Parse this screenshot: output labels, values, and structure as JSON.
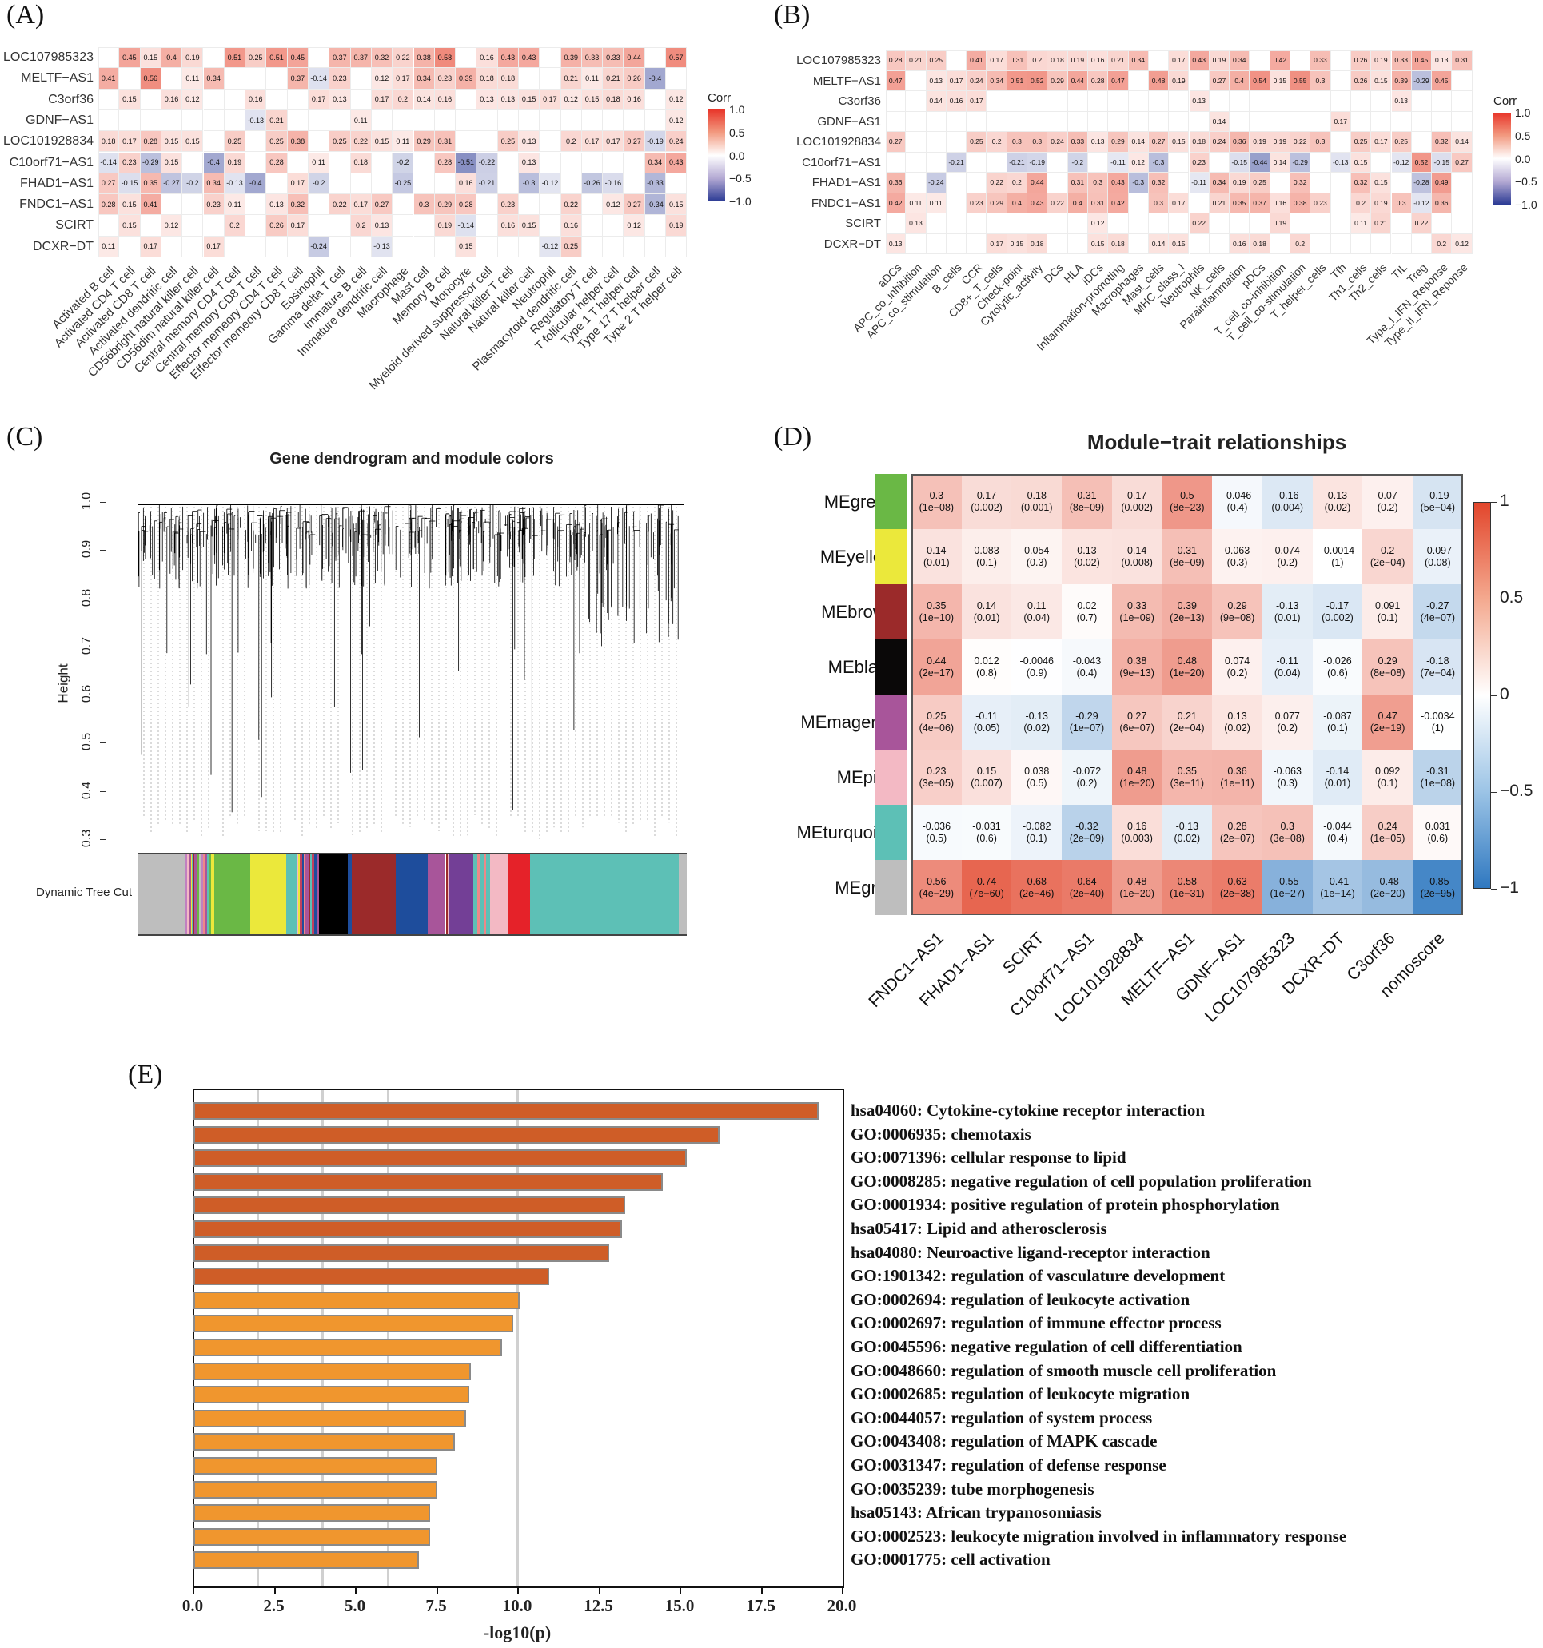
{
  "panels": {
    "a": "(A)",
    "b": "(B)",
    "c": "(C)",
    "d": "(D)",
    "e": "(E)"
  },
  "colors": {
    "positive": "#e8503a",
    "negative_a": "#2b3a94",
    "d_positive": "#e2462c",
    "d_negative": "#2f78c0",
    "e_top": "#cf5d27",
    "e_rest": "#f0962e"
  },
  "chart_data": [
    {
      "panel": "A",
      "type": "heatmap",
      "legend": {
        "title": "Corr",
        "ticks": [
          "1.0",
          "0.5",
          "0.0",
          "−0.5",
          "−1.0"
        ],
        "range": [
          -1,
          1
        ]
      },
      "rows": [
        "LOC107985323",
        "MELTF−AS1",
        "C3orf36",
        "GDNF−AS1",
        "LOC101928834",
        "C10orf71−AS1",
        "FHAD1−AS1",
        "FNDC1−AS1",
        "SCIRT",
        "DCXR−DT"
      ],
      "columns": [
        "Activated B cell",
        "Activated CD4 T cell",
        "Activated CD8 T cell",
        "Activated dendritic cell",
        "CD56bright natural killer cell",
        "CD56dim natural killer cell",
        "Central memory CD4 T cell",
        "Central memory CD8 T cell",
        "Effector memeory CD4 T cell",
        "Effector memeory CD8 T cell",
        "Eosinophil",
        "Gamma delta T cell",
        "Immature B cell",
        "Immature dendritic cell",
        "Macrophage",
        "Mast cell",
        "Memory B cell",
        "Monocyte",
        "Myeloid derived suppressor cell",
        "Natural killer T cell",
        "Natural killer cell",
        "Neutrophil",
        "Plasmacytoid dendritic cell",
        "Regulatory T cell",
        "T follicular helper cell",
        "Type 1 T helper cell",
        "Type 17 T helper cell",
        "Type 2 T helper cell"
      ],
      "values": [
        [
          null,
          0.45,
          0.15,
          0.4,
          0.19,
          null,
          0.51,
          0.25,
          0.51,
          0.45,
          null,
          0.37,
          0.37,
          0.32,
          0.22,
          0.38,
          0.58,
          null,
          0.16,
          0.43,
          0.43,
          null,
          0.39,
          0.33,
          0.33,
          0.44,
          null,
          0.57
        ],
        [
          0.41,
          null,
          0.56,
          null,
          0.11,
          0.34,
          null,
          null,
          null,
          0.37,
          -0.14,
          0.23,
          null,
          0.12,
          0.17,
          0.34,
          0.23,
          0.39,
          0.18,
          0.18,
          null,
          null,
          0.21,
          0.11,
          0.21,
          0.26,
          -0.4,
          null
        ],
        [
          null,
          0.15,
          null,
          0.16,
          0.12,
          null,
          null,
          0.16,
          null,
          null,
          0.17,
          0.13,
          null,
          0.17,
          0.2,
          0.14,
          0.16,
          null,
          0.13,
          0.13,
          0.15,
          0.17,
          0.12,
          0.15,
          0.18,
          0.16,
          null,
          0.12
        ],
        [
          null,
          null,
          null,
          null,
          null,
          null,
          null,
          -0.13,
          0.21,
          null,
          null,
          null,
          0.11,
          null,
          null,
          null,
          null,
          null,
          null,
          null,
          null,
          null,
          null,
          null,
          null,
          null,
          null,
          0.12
        ],
        [
          0.18,
          0.17,
          0.28,
          0.15,
          0.15,
          null,
          0.25,
          null,
          0.25,
          0.38,
          null,
          0.25,
          0.22,
          0.15,
          0.11,
          0.29,
          0.31,
          null,
          null,
          0.25,
          0.13,
          null,
          0.2,
          0.17,
          0.17,
          0.27,
          -0.19,
          0.24
        ],
        [
          -0.14,
          0.23,
          -0.29,
          0.15,
          null,
          -0.4,
          0.19,
          null,
          0.28,
          null,
          0.11,
          null,
          0.18,
          null,
          -0.2,
          null,
          0.28,
          -0.51,
          -0.22,
          null,
          0.13,
          null,
          null,
          null,
          null,
          null,
          0.34,
          0.43
        ],
        [
          0.27,
          -0.15,
          0.35,
          -0.27,
          -0.2,
          0.34,
          -0.13,
          -0.4,
          null,
          0.17,
          -0.2,
          null,
          null,
          null,
          -0.25,
          null,
          null,
          0.16,
          -0.21,
          null,
          -0.3,
          -0.12,
          null,
          -0.26,
          -0.16,
          null,
          -0.33,
          null
        ],
        [
          0.28,
          0.15,
          0.41,
          null,
          null,
          0.23,
          0.11,
          null,
          0.13,
          0.32,
          null,
          0.22,
          0.17,
          0.27,
          null,
          0.3,
          0.29,
          0.28,
          null,
          0.23,
          null,
          null,
          0.22,
          null,
          0.12,
          0.27,
          -0.34,
          0.15
        ],
        [
          null,
          0.15,
          null,
          0.12,
          null,
          null,
          0.2,
          null,
          0.26,
          0.17,
          null,
          null,
          0.2,
          0.13,
          null,
          null,
          0.19,
          -0.14,
          null,
          0.16,
          0.15,
          null,
          0.16,
          null,
          null,
          0.12,
          null,
          0.19
        ],
        [
          0.11,
          null,
          0.17,
          null,
          null,
          0.17,
          null,
          null,
          null,
          null,
          -0.24,
          null,
          null,
          -0.13,
          null,
          null,
          null,
          0.15,
          null,
          null,
          null,
          -0.12,
          0.25,
          null,
          null,
          null,
          null,
          null
        ]
      ]
    },
    {
      "panel": "B",
      "type": "heatmap",
      "legend": {
        "title": "Corr",
        "ticks": [
          "1.0",
          "0.5",
          "0.0",
          "−0.5",
          "−1.0"
        ],
        "range": [
          -1,
          1
        ]
      },
      "rows": [
        "LOC107985323",
        "MELTF−AS1",
        "C3orf36",
        "GDNF−AS1",
        "LOC101928834",
        "C10orf71−AS1",
        "FHAD1−AS1",
        "FNDC1−AS1",
        "SCIRT",
        "DCXR−DT"
      ],
      "columns": [
        "aDCs",
        "APC_co_inhibition",
        "APC_co_stimulation",
        "B_cells",
        "CCR",
        "CD8+_T_cells",
        "Check-point",
        "Cytolytic_activity",
        "DCs",
        "HLA",
        "iDCs",
        "Inflammation-promoting",
        "Macrophages",
        "Mast_cells",
        "MHC_class_I",
        "Neutrophils",
        "NK_cells",
        "Parainflammation",
        "pDCs",
        "T_cell_co-inhibition",
        "T_cell_co-stimulation",
        "T_helper_cells",
        "Tfh",
        "Th1_cells",
        "Th2_cells",
        "TIL",
        "Treg",
        "Type_I_IFN_Reponse",
        "Type_II_IFN_Reponse"
      ],
      "values": [
        [
          0.28,
          0.21,
          0.25,
          null,
          0.41,
          0.17,
          0.31,
          0.2,
          0.18,
          0.19,
          0.16,
          0.21,
          0.34,
          null,
          0.17,
          0.43,
          0.19,
          0.34,
          null,
          0.42,
          null,
          0.33,
          null,
          0.26,
          0.19,
          0.33,
          0.45,
          0.13,
          0.31
        ],
        [
          0.47,
          null,
          0.13,
          0.17,
          0.24,
          0.34,
          0.51,
          0.52,
          0.29,
          0.44,
          0.28,
          0.47,
          null,
          0.48,
          0.19,
          null,
          0.27,
          0.4,
          0.54,
          0.15,
          0.55,
          0.3,
          null,
          0.26,
          0.15,
          0.39,
          -0.29,
          0.45,
          null
        ],
        [
          null,
          null,
          0.14,
          0.16,
          0.17,
          null,
          null,
          null,
          null,
          null,
          null,
          null,
          null,
          null,
          null,
          0.13,
          null,
          null,
          null,
          null,
          null,
          null,
          null,
          null,
          null,
          0.13,
          null,
          null,
          null
        ],
        [
          null,
          null,
          null,
          null,
          null,
          null,
          null,
          null,
          null,
          null,
          null,
          null,
          null,
          null,
          null,
          null,
          0.14,
          null,
          null,
          null,
          null,
          null,
          0.17,
          null,
          null,
          null,
          null,
          null,
          null
        ],
        [
          0.27,
          null,
          null,
          null,
          0.25,
          0.2,
          0.3,
          0.3,
          0.24,
          0.33,
          0.13,
          0.29,
          0.14,
          0.27,
          0.15,
          0.18,
          0.24,
          0.36,
          0.19,
          0.19,
          0.22,
          0.3,
          null,
          0.25,
          0.17,
          0.25,
          null,
          0.32,
          0.14
        ],
        [
          null,
          null,
          null,
          -0.21,
          null,
          null,
          -0.21,
          -0.19,
          null,
          -0.2,
          null,
          -0.11,
          0.12,
          -0.3,
          null,
          0.23,
          null,
          -0.15,
          -0.44,
          0.14,
          -0.29,
          null,
          -0.13,
          0.15,
          null,
          -0.12,
          0.52,
          -0.15,
          0.27
        ],
        [
          0.36,
          null,
          -0.24,
          null,
          null,
          0.22,
          0.2,
          0.44,
          null,
          0.31,
          0.3,
          0.43,
          -0.3,
          0.32,
          null,
          -0.11,
          0.34,
          0.19,
          0.25,
          null,
          0.32,
          null,
          null,
          0.32,
          0.15,
          null,
          -0.28,
          0.49,
          null
        ],
        [
          0.42,
          0.11,
          0.11,
          null,
          0.23,
          0.29,
          0.4,
          0.43,
          0.22,
          0.4,
          0.31,
          0.42,
          null,
          0.3,
          0.17,
          null,
          0.21,
          0.35,
          0.37,
          0.16,
          0.38,
          0.23,
          null,
          0.2,
          0.19,
          0.3,
          -0.12,
          0.36,
          null
        ],
        [
          null,
          0.13,
          null,
          null,
          null,
          null,
          null,
          null,
          null,
          null,
          0.12,
          null,
          null,
          null,
          null,
          0.22,
          null,
          null,
          null,
          0.19,
          null,
          null,
          null,
          0.11,
          0.21,
          null,
          0.22,
          null,
          null
        ],
        [
          0.13,
          null,
          null,
          null,
          null,
          0.17,
          0.15,
          0.18,
          null,
          null,
          0.15,
          0.18,
          null,
          0.14,
          0.15,
          null,
          null,
          0.16,
          0.18,
          null,
          0.2,
          null,
          null,
          null,
          null,
          null,
          null,
          0.2,
          0.12
        ]
      ]
    },
    {
      "panel": "C",
      "type": "dendrogram",
      "title": "Gene dendrogram and module colors",
      "ylabel": "Height",
      "yticks": [
        "0.3",
        "0.4",
        "0.5",
        "0.6",
        "0.7",
        "0.8",
        "0.9",
        "1.0"
      ],
      "ylim": [
        0.3,
        1.0
      ],
      "colorbar_label": "Dynamic Tree Cut"
    },
    {
      "panel": "D",
      "type": "heatmap",
      "title": "Module−trait relationships",
      "rows": [
        {
          "name": "MEgreen",
          "color": "#6ab845"
        },
        {
          "name": "MEyellow",
          "color": "#ebe83b"
        },
        {
          "name": "MEbrown",
          "color": "#9b2a2a"
        },
        {
          "name": "MEblack",
          "color": "#0a0808"
        },
        {
          "name": "MEmagenta",
          "color": "#a8559a"
        },
        {
          "name": "MEpink",
          "color": "#f3b9c4"
        },
        {
          "name": "MEturquoise",
          "color": "#5dc0b6"
        },
        {
          "name": "MEgrey",
          "color": "#bebebe"
        }
      ],
      "columns": [
        "FNDC1−AS1",
        "FHAD1−AS1",
        "SCIRT",
        "C10orf71−AS1",
        "LOC101928834",
        "MELTF−AS1",
        "GDNF−AS1",
        "LOC107985323",
        "DCXR−DT",
        "C3orf36",
        "nomoscore"
      ],
      "values": [
        [
          0.3,
          0.17,
          0.18,
          0.31,
          0.17,
          0.5,
          -0.046,
          -0.16,
          0.13,
          0.07,
          -0.19
        ],
        [
          0.14,
          0.083,
          0.054,
          0.13,
          0.14,
          0.31,
          0.063,
          0.074,
          -0.0014,
          0.2,
          -0.097
        ],
        [
          0.35,
          0.14,
          0.11,
          0.02,
          0.33,
          0.39,
          0.29,
          -0.13,
          -0.17,
          0.091,
          -0.27
        ],
        [
          0.44,
          0.012,
          -0.0046,
          -0.043,
          0.38,
          0.48,
          0.074,
          -0.11,
          -0.026,
          0.29,
          -0.18
        ],
        [
          0.25,
          -0.11,
          -0.13,
          -0.29,
          0.27,
          0.21,
          0.13,
          0.077,
          -0.087,
          0.47,
          -0.0034
        ],
        [
          0.23,
          0.15,
          0.038,
          -0.072,
          0.48,
          0.35,
          0.36,
          -0.063,
          -0.14,
          0.092,
          -0.31
        ],
        [
          -0.036,
          -0.031,
          -0.082,
          -0.32,
          0.16,
          -0.13,
          0.28,
          0.3,
          -0.044,
          0.24,
          0.031
        ],
        [
          0.56,
          0.74,
          0.68,
          0.64,
          0.48,
          0.58,
          0.63,
          -0.55,
          -0.41,
          -0.48,
          -0.85
        ]
      ],
      "pvalues": [
        [
          "1e−08",
          "0.002",
          "0.001",
          "8e−09",
          "0.002",
          "8e−23",
          "0.4",
          "0.004",
          "0.02",
          "0.2",
          "5e−04"
        ],
        [
          "0.01",
          "0.1",
          "0.3",
          "0.02",
          "0.008",
          "8e−09",
          "0.3",
          "0.2",
          "1",
          "2e−04",
          "0.08"
        ],
        [
          "1e−10",
          "0.01",
          "0.04",
          "0.7",
          "1e−09",
          "2e−13",
          "9e−08",
          "0.01",
          "0.002",
          "0.1",
          "4e−07"
        ],
        [
          "2e−17",
          "0.8",
          "0.9",
          "0.4",
          "9e−13",
          "1e−20",
          "0.2",
          "0.04",
          "0.6",
          "8e−08",
          "7e−04"
        ],
        [
          "4e−06",
          "0.05",
          "0.02",
          "1e−07",
          "6e−07",
          "2e−04",
          "0.02",
          "0.2",
          "0.1",
          "2e−19",
          "1"
        ],
        [
          "3e−05",
          "0.007",
          "0.5",
          "0.2",
          "1e−20",
          "3e−11",
          "1e−11",
          "0.3",
          "0.01",
          "0.1",
          "1e−08"
        ],
        [
          "0.5",
          "0.6",
          "0.1",
          "2e−09",
          "0.003",
          "0.02",
          "2e−07",
          "3e−08",
          "0.4",
          "1e−05",
          "0.6"
        ],
        [
          "4e−29",
          "7e−60",
          "2e−46",
          "2e−40",
          "1e−20",
          "1e−31",
          "2e−38",
          "1e−27",
          "1e−14",
          "2e−20",
          "2e−95"
        ]
      ],
      "legend": {
        "ticks": [
          "1",
          "0.5",
          "0",
          "−0.5",
          "−1"
        ],
        "range": [
          -1,
          1
        ]
      }
    },
    {
      "panel": "E",
      "type": "bar",
      "orientation": "horizontal",
      "xlabel": "-log10(p)",
      "xlim": [
        0,
        20
      ],
      "xticks": [
        "0.0",
        "2.5",
        "5.0",
        "7.5",
        "10.0",
        "12.5",
        "15.0",
        "17.5",
        "20.0"
      ],
      "gridlines": [
        2,
        4,
        6,
        10
      ],
      "categories": [
        "hsa04060: Cytokine-cytokine receptor interaction",
        "GO:0006935: chemotaxis",
        "GO:0071396: cellular response to lipid",
        "GO:0008285: negative regulation of cell population proliferation",
        "GO:0001934: positive regulation of protein phosphorylation",
        "hsa05417: Lipid and atherosclerosis",
        "hsa04080: Neuroactive ligand-receptor interaction",
        "GO:1901342: regulation of vasculature development",
        "GO:0002694: regulation of leukocyte activation",
        "GO:0002697: regulation of immune effector process",
        "GO:0045596: negative regulation of cell differentiation",
        "GO:0048660: regulation of smooth muscle cell proliferation",
        "GO:0002685: regulation of leukocyte migration",
        "GO:0044057: regulation of system process",
        "GO:0043408: regulation of MAPK cascade",
        "GO:0031347: regulation of defense response",
        "GO:0035239: tube morphogenesis",
        "hsa05143: African trypanosomiasis",
        "GO:0002523: leukocyte migration involved in inflammatory response",
        "GO:0001775: cell activation"
      ],
      "values": [
        19.25,
        16.2,
        15.2,
        14.45,
        13.3,
        13.2,
        12.8,
        10.95,
        10.05,
        9.85,
        9.5,
        8.55,
        8.5,
        8.4,
        8.05,
        7.5,
        7.5,
        7.3,
        7.3,
        6.95
      ]
    }
  ]
}
